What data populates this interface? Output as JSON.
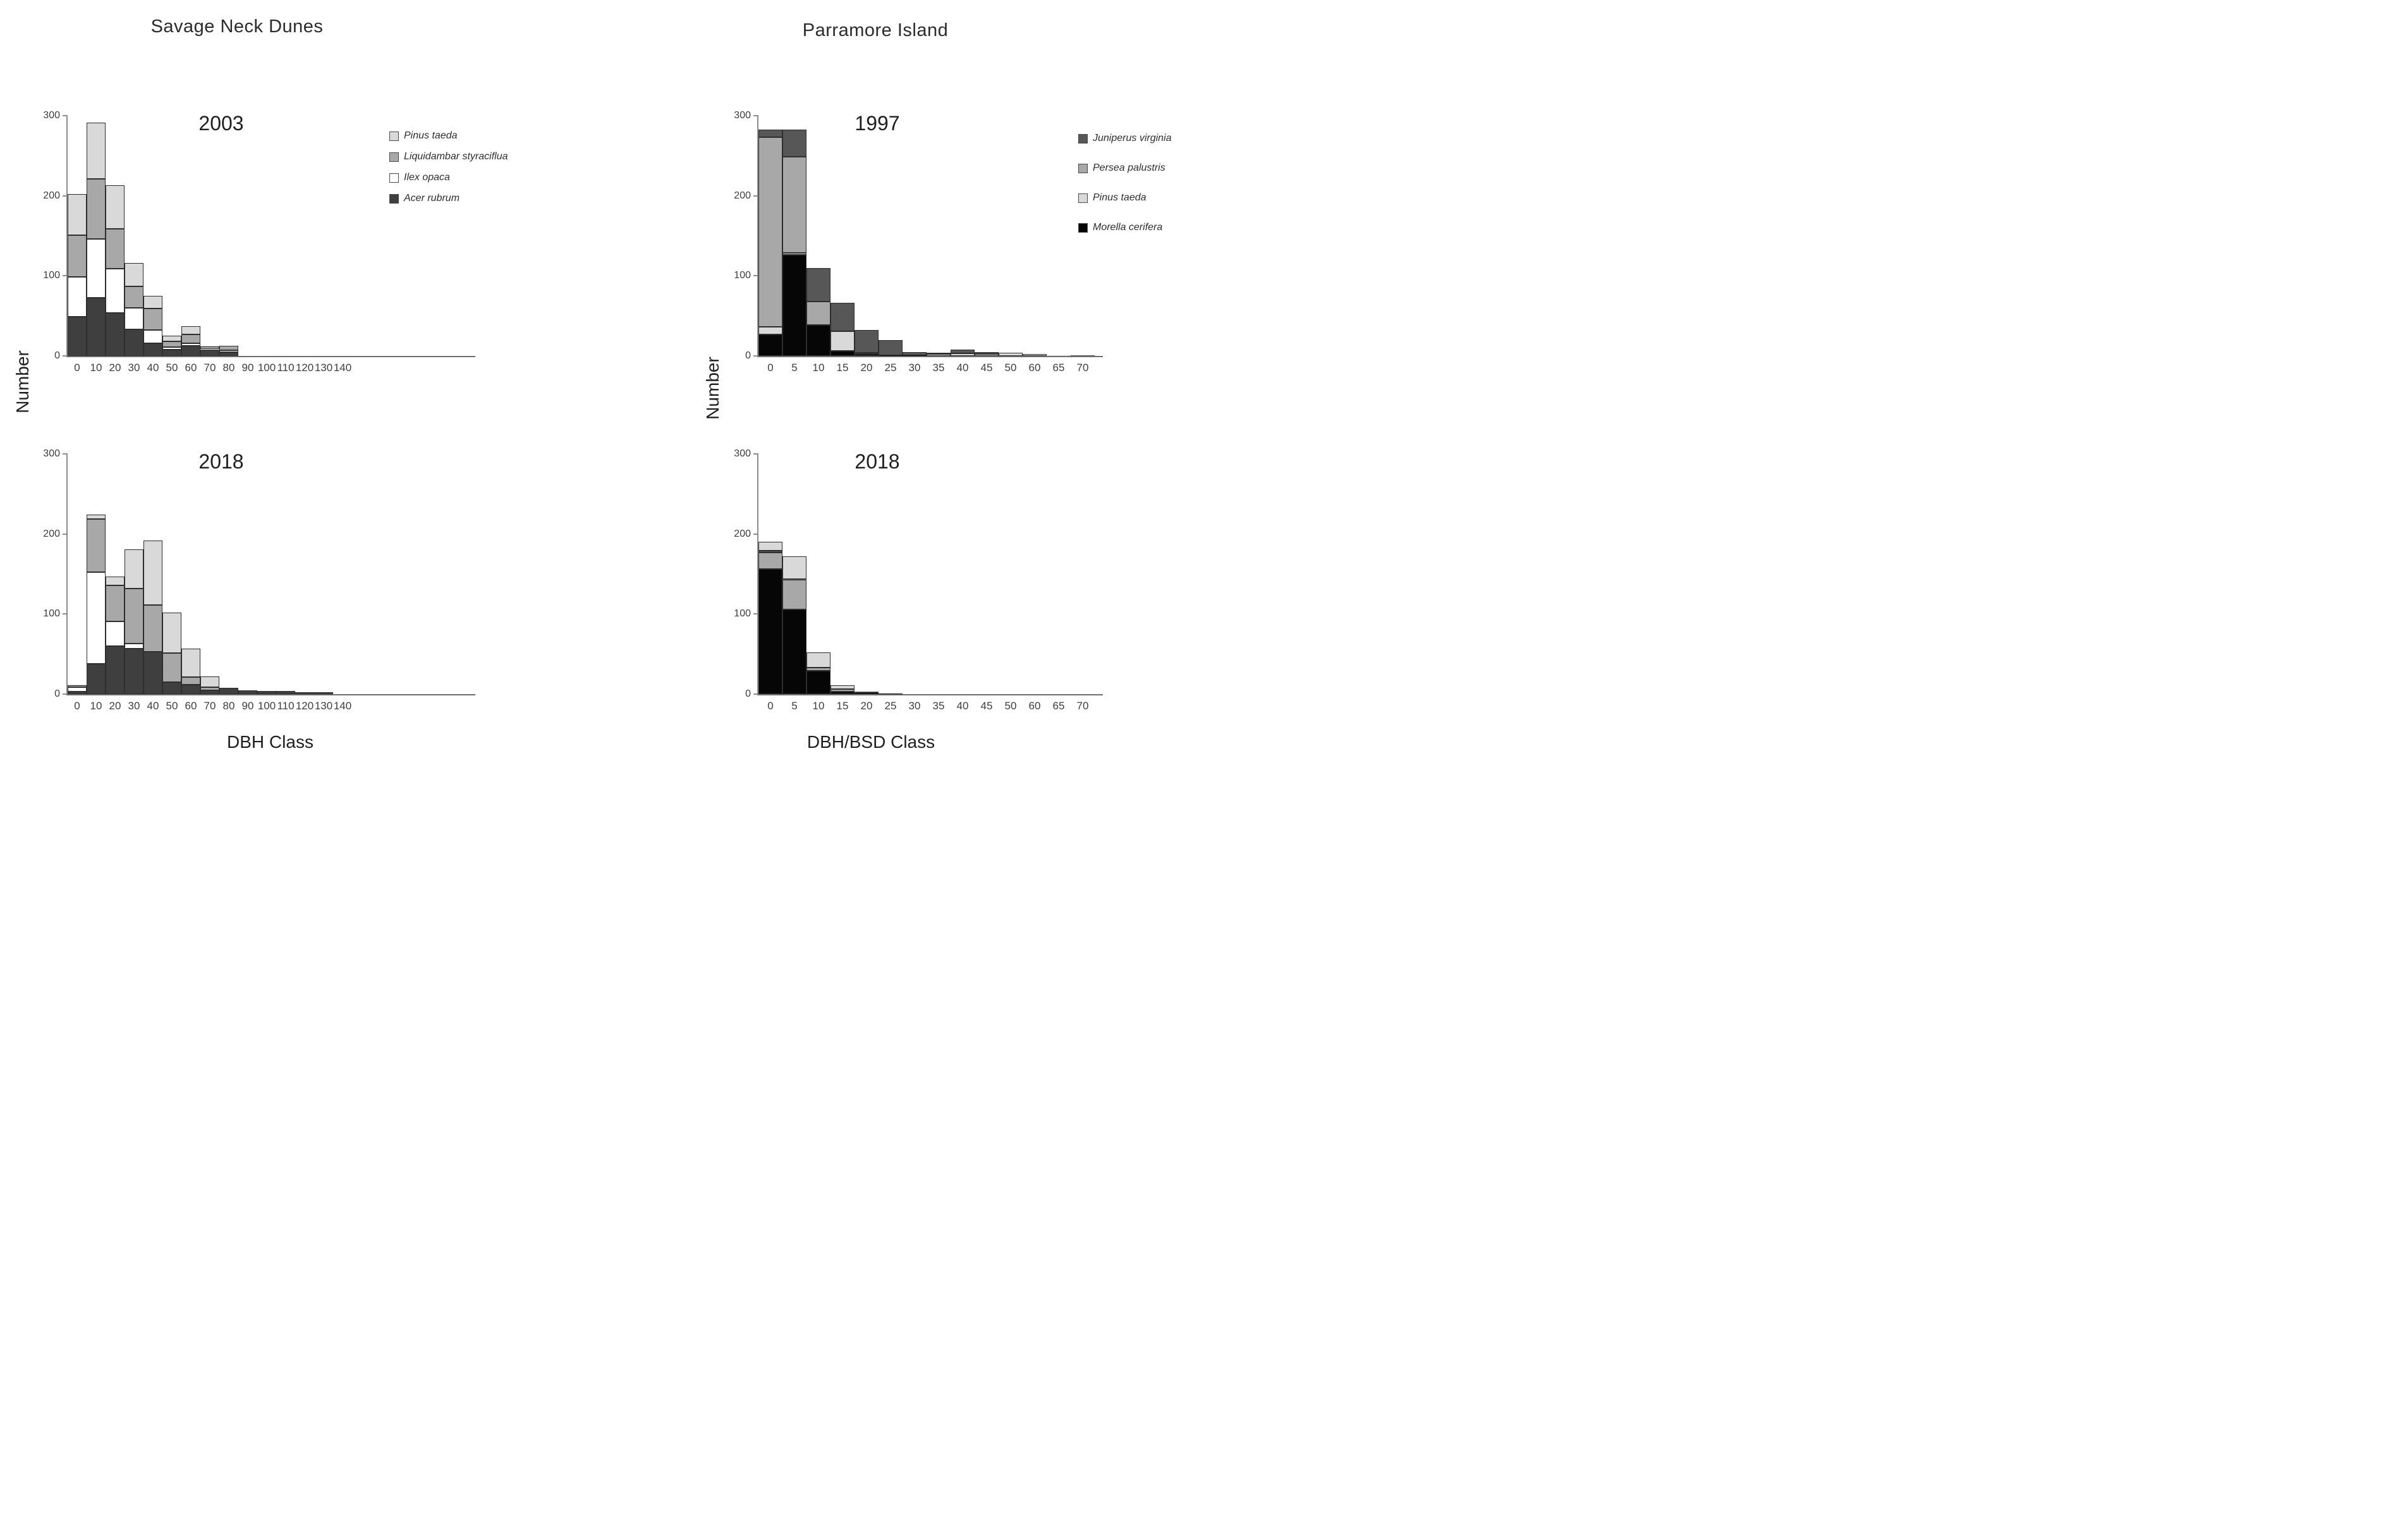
{
  "figure": {
    "site_titles": {
      "left": "Savage Neck Dunes",
      "right": "Parramore Island"
    },
    "y_axis_label": {
      "left": "Number",
      "right": "Number"
    },
    "x_axis_label": {
      "left": "DBH Class",
      "right": "DBH/BSD Class"
    }
  },
  "colors": {
    "pinus": "#d9d9d9",
    "liquidambar": "#a8a8a8",
    "ilex": "#ffffff",
    "acer": "#3f3f3f",
    "juniperus": "#575757",
    "persea": "#a8a8a8",
    "morella": "#060606",
    "axis": "#6e6e6e"
  },
  "legends": {
    "left": [
      {
        "label": "Pinus taeda",
        "color": "pinus"
      },
      {
        "label": "Liquidambar styraciflua",
        "color": "liquidambar"
      },
      {
        "label": "Ilex opaca",
        "color": "ilex"
      },
      {
        "label": "Acer rubrum",
        "color": "acer"
      }
    ],
    "right": [
      {
        "label": "Juniperus virginia",
        "color": "juniperus"
      },
      {
        "label": "Persea palustris",
        "color": "persea"
      },
      {
        "label": "Pinus taeda",
        "color": "pinus"
      },
      {
        "label": "Morella cerifera",
        "color": "morella"
      }
    ]
  },
  "chart_data": [
    {
      "type": "bar",
      "stacked": true,
      "site": "Savage Neck Dunes",
      "year": "2003",
      "xlabel": "DBH Class",
      "ylabel": "Number",
      "ylim": [
        0,
        300
      ],
      "yticks": [
        0,
        100,
        200,
        300
      ],
      "grid": false,
      "categories": [
        "0",
        "10",
        "20",
        "30",
        "40",
        "50",
        "60",
        "70",
        "80",
        "90",
        "100",
        "110",
        "120",
        "130",
        "140"
      ],
      "series": [
        {
          "name": "Acer rubrum",
          "color": "acer",
          "values": [
            49,
            73,
            54,
            33,
            16,
            8,
            13,
            8,
            5,
            0,
            0,
            0,
            0,
            0,
            0
          ]
        },
        {
          "name": "Ilex opaca",
          "color": "ilex",
          "values": [
            50,
            73,
            55,
            27,
            16,
            3,
            3,
            1,
            2,
            0,
            0,
            0,
            0,
            0,
            0
          ]
        },
        {
          "name": "Liquidambar styraciflua",
          "color": "liquidambar",
          "values": [
            52,
            75,
            50,
            27,
            27,
            7,
            11,
            3,
            6,
            0,
            0,
            0,
            0,
            0,
            0
          ]
        },
        {
          "name": "Pinus taeda",
          "color": "pinus",
          "values": [
            51,
            70,
            54,
            29,
            16,
            7,
            10,
            1,
            0,
            0,
            0,
            0,
            0,
            0,
            0
          ]
        }
      ]
    },
    {
      "type": "bar",
      "stacked": true,
      "site": "Savage Neck Dunes",
      "year": "2018",
      "xlabel": "DBH Class",
      "ylabel": "Number",
      "ylim": [
        0,
        300
      ],
      "yticks": [
        0,
        100,
        200,
        300
      ],
      "grid": false,
      "categories": [
        "0",
        "10",
        "20",
        "30",
        "40",
        "50",
        "60",
        "70",
        "80",
        "90",
        "100",
        "110",
        "120",
        "130",
        "140"
      ],
      "series": [
        {
          "name": "Acer rubrum",
          "color": "acer",
          "values": [
            3,
            38,
            60,
            57,
            53,
            15,
            12,
            5,
            8,
            5,
            4,
            4,
            2,
            2,
            0
          ]
        },
        {
          "name": "Ilex opaca",
          "color": "ilex",
          "values": [
            6,
            114,
            31,
            6,
            0,
            0,
            0,
            0,
            0,
            0,
            0,
            0,
            0,
            0,
            0
          ]
        },
        {
          "name": "Liquidambar styraciflua",
          "color": "liquidambar",
          "values": [
            2,
            67,
            45,
            69,
            58,
            36,
            9,
            4,
            0,
            0,
            0,
            0,
            0,
            0,
            0
          ]
        },
        {
          "name": "Pinus taeda",
          "color": "pinus",
          "values": [
            1,
            5,
            11,
            49,
            81,
            51,
            36,
            13,
            0,
            0,
            0,
            0,
            0,
            0,
            0
          ]
        }
      ]
    },
    {
      "type": "bar",
      "stacked": true,
      "site": "Parramore Island",
      "year": "1997",
      "xlabel": "DBH/BSD Class",
      "ylabel": "Number",
      "ylim": [
        0,
        300
      ],
      "yticks": [
        0,
        100,
        200,
        300
      ],
      "grid": false,
      "categories": [
        "0",
        "5",
        "10",
        "15",
        "20",
        "25",
        "30",
        "35",
        "40",
        "45",
        "50",
        "60",
        "65",
        "70"
      ],
      "series": [
        {
          "name": "Morella cerifera",
          "color": "morella",
          "values": [
            27,
            126,
            39,
            6,
            2,
            1,
            1,
            0,
            0,
            0,
            0,
            0,
            0,
            0
          ]
        },
        {
          "name": "Pinus taeda",
          "color": "pinus",
          "values": [
            9,
            3,
            0,
            25,
            2,
            0,
            0,
            2,
            3,
            2,
            4,
            2,
            1,
            0
          ]
        },
        {
          "name": "Persea palustris",
          "color": "persea",
          "values": [
            237,
            120,
            29,
            0,
            0,
            0,
            0,
            0,
            0,
            0,
            0,
            0,
            0,
            0
          ]
        },
        {
          "name": "Juniperus virginia",
          "color": "juniperus",
          "values": [
            10,
            34,
            42,
            35,
            28,
            19,
            4,
            2,
            5,
            3,
            0,
            0,
            0,
            1
          ]
        }
      ]
    },
    {
      "type": "bar",
      "stacked": true,
      "site": "Parramore Island",
      "year": "2018",
      "xlabel": "DBH/BSD Class",
      "ylabel": "Number",
      "ylim": [
        0,
        300
      ],
      "yticks": [
        0,
        100,
        200,
        300
      ],
      "grid": false,
      "categories": [
        "0",
        "5",
        "10",
        "15",
        "20",
        "25",
        "30",
        "35",
        "40",
        "45",
        "50",
        "60",
        "65",
        "70"
      ],
      "series": [
        {
          "name": "Morella cerifera",
          "color": "morella",
          "values": [
            156,
            106,
            29,
            3,
            2,
            1,
            0,
            0,
            0,
            0,
            0,
            0,
            0,
            0
          ]
        },
        {
          "name": "Persea palustris",
          "color": "persea",
          "values": [
            21,
            37,
            4,
            3,
            0,
            0,
            0,
            0,
            0,
            0,
            0,
            0,
            0,
            0
          ]
        },
        {
          "name": "Juniperus virginia",
          "color": "juniperus",
          "values": [
            2,
            1,
            0,
            0,
            1,
            0,
            0,
            0,
            0,
            0,
            0,
            0,
            0,
            0
          ]
        },
        {
          "name": "Pinus taeda",
          "color": "pinus",
          "values": [
            11,
            28,
            19,
            5,
            0,
            0,
            0,
            0,
            0,
            0,
            0,
            0,
            0,
            0
          ]
        }
      ]
    }
  ]
}
